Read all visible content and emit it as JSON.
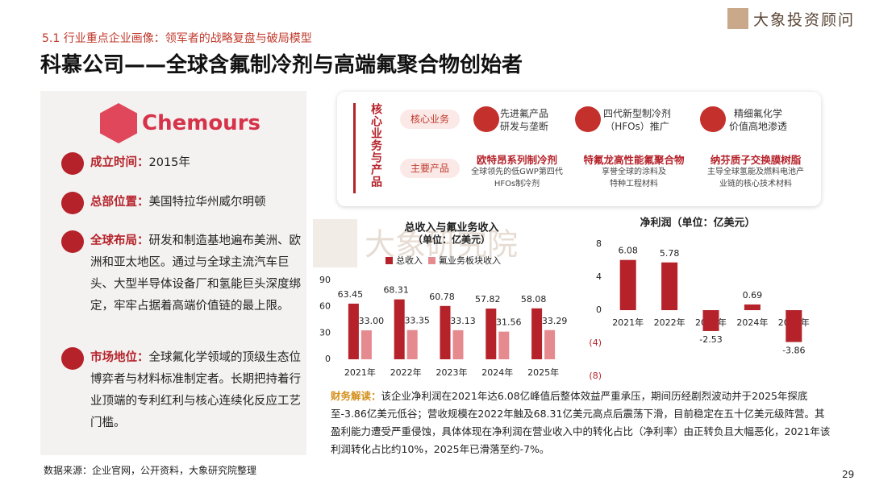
{
  "header": {
    "section": "5.1 行业重点企业画像：领军者的战略复盘与破局模型",
    "title": "科慕公司——全球含氟制冷剂与高端氟聚合物创始者",
    "brand": "大象投资顾问"
  },
  "profile": {
    "logo": "Chemours",
    "items": [
      {
        "label": "成立时间：",
        "text": "2015年"
      },
      {
        "label": "总部位置：",
        "text": "美国特拉华州威尔明顿"
      },
      {
        "label": "全球布局：",
        "text": "研发和制造基地遍布美洲、欧洲和亚太地区。通过与全球主流汽车巨头、大型半导体设备厂和氢能巨头深度绑定，牢牢占据着高端价值链的最上限。"
      },
      {
        "label": "市场地位：",
        "text": "全球氟化学领域的顶级生态位博弈者与材料标准制定者。长期把持着行业顶端的专利红利与核心连续化反应工艺门槛。"
      }
    ]
  },
  "business": {
    "heading": "核心业务与产品",
    "core_label": "核心业务",
    "core": [
      "先进氟产品\n研发与垄断",
      "四代新型制冷剂\n（HFOs）推广",
      "精细氟化学\n价值高地渗透"
    ],
    "product_label": "主要产品",
    "products": [
      {
        "name": "欧特昂系列制冷剂",
        "desc": "全球领先的低GWP第四代HFOs制冷剂"
      },
      {
        "name": "特氟龙高性能氟聚合物",
        "desc": "享誉全球的涂料及\n特种工程材料"
      },
      {
        "name": "纳芬质子交换膜树脂",
        "desc": "主导全球氢能及燃料电池产业链的核心技术材料"
      }
    ]
  },
  "watermark": "大象研究院",
  "chart_data": [
    {
      "type": "bar",
      "title": "总收入与氟业务收入",
      "subtitle": "（单位：亿美元）",
      "categories": [
        "2021年",
        "2022年",
        "2023年",
        "2024年",
        "2025年"
      ],
      "series": [
        {
          "name": "总收入",
          "color": "#b5222a",
          "values": [
            63.45,
            68.31,
            60.78,
            57.82,
            58.08
          ]
        },
        {
          "name": "氟业务板块收入",
          "color": "#e58a8e",
          "values": [
            33.0,
            33.35,
            33.13,
            31.56,
            33.29
          ],
          "value_labels": [
            "33.00",
            "33.35",
            "33.13",
            "31.56",
            "33.29"
          ]
        }
      ],
      "ylim": [
        0,
        90
      ],
      "yticks": [
        0,
        30,
        60,
        90
      ],
      "legend": "top"
    },
    {
      "type": "bar",
      "title": "净利润（单位：亿美元）",
      "categories": [
        "2021年",
        "2022年",
        "2023年",
        "2024年",
        "2025年"
      ],
      "values": [
        6.08,
        5.78,
        -2.53,
        0.69,
        -3.86
      ],
      "color": "#b5222a",
      "ylim": [
        -8,
        8
      ],
      "yticks": [
        {
          "value": -8,
          "label": "(8)"
        },
        {
          "value": -4,
          "label": "(4)"
        },
        0,
        4,
        8
      ]
    }
  ],
  "analysis": {
    "label": "财务解读：",
    "text": "该企业净利润在2021年达6.08亿峰值后整体效益严重承压，期间历经剧烈波动并于2025年探底至-3.86亿美元低谷；营收规模在2022年触及68.31亿美元高点后震荡下滑，目前稳定在五十亿美元级阵营。其盈利能力遭受严重侵蚀，具体体现在净利润在营业收入中的转化占比（净利率）由正转负且大幅恶化，2021年该利润转化占比约10%，2025年已滑落至约-7%。"
  },
  "footer": {
    "source": "数据来源：企业官网，公开资料，大象研究院整理",
    "page": 29
  }
}
